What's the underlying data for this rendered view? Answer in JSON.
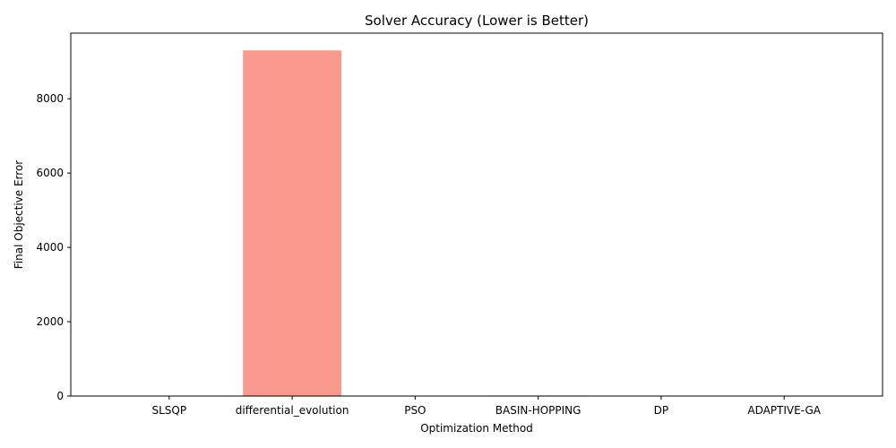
{
  "chart_data": {
    "type": "bar",
    "title": "Solver Accuracy (Lower is Better)",
    "xlabel": "Optimization Method",
    "ylabel": "Final Objective Error",
    "categories": [
      "SLSQP",
      "differential_evolution",
      "PSO",
      "BASIN-HOPPING",
      "DP",
      "ADAPTIVE-GA"
    ],
    "values": [
      0,
      9300,
      0,
      15,
      0,
      0
    ],
    "ylim": [
      0,
      9765
    ],
    "yticks": [
      0,
      2000,
      4000,
      6000,
      8000
    ],
    "bar_color": "#fa9a8d",
    "grid": false,
    "legend": "none"
  }
}
